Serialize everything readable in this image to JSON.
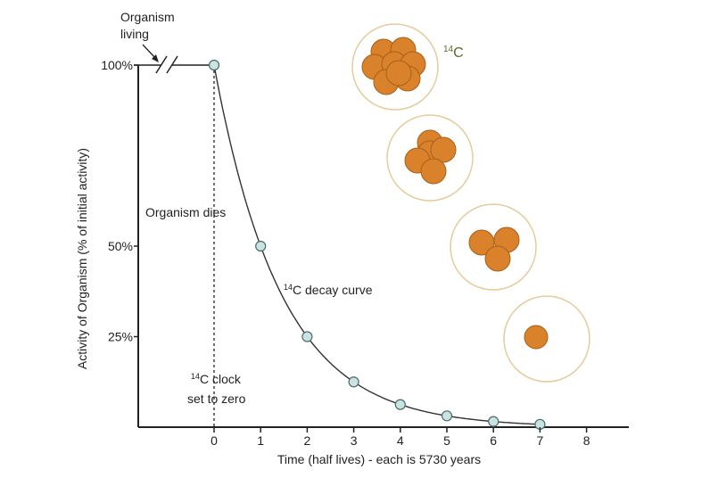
{
  "chart_data": {
    "type": "line",
    "title": "",
    "xlabel": "Time (half lives) - each is 5730 years",
    "ylabel": "Activity of Organism (% of initial activity)",
    "x_ticks": [
      "0",
      "1",
      "2",
      "3",
      "4",
      "5",
      "6",
      "7",
      "8"
    ],
    "y_ticks": [
      {
        "value": 100,
        "label": "100%"
      },
      {
        "value": 50,
        "label": "50%"
      },
      {
        "value": 25,
        "label": "25%"
      }
    ],
    "xlim": [
      0,
      8
    ],
    "ylim": [
      0,
      100
    ],
    "grid": false,
    "x": [
      0,
      1,
      2,
      3,
      4,
      5,
      6,
      7
    ],
    "values": [
      100,
      50,
      25,
      12.5,
      6.25,
      3.125,
      1.5625,
      0.78
    ],
    "annotations": {
      "living": "Organism living",
      "living_line1": "Organism",
      "living_line2": "living",
      "dies": "Organism dies",
      "curve_sup": "14",
      "curve": "C decay curve",
      "clock_sup": "14",
      "clock_line1": "C clock",
      "clock_line2": "set to zero",
      "isotope_sup": "14",
      "isotope": "C"
    },
    "atom_counts": [
      8,
      4,
      2,
      1
    ],
    "colors": {
      "point": "#c9e3e3",
      "atom": "#d9822b",
      "atom_stroke": "#a8601a",
      "ring": "#e6cc9c",
      "isotope_label": "#5a6a2a"
    }
  }
}
